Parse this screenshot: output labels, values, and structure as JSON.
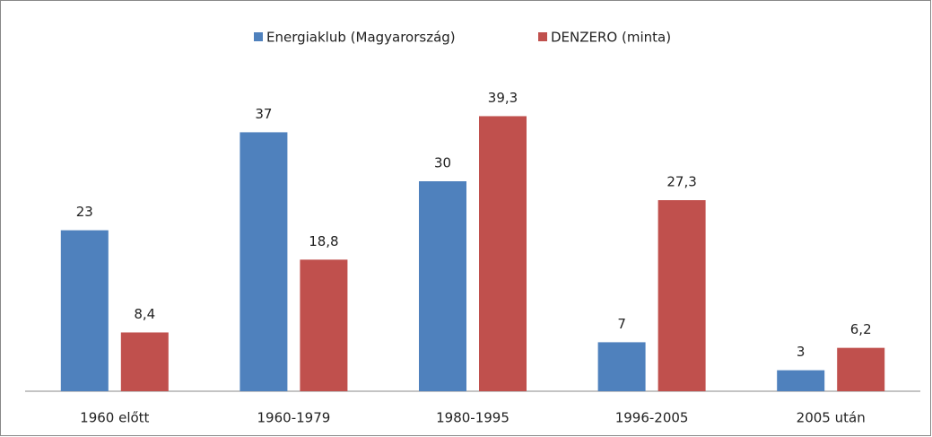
{
  "chart_data": {
    "type": "bar",
    "categories": [
      "1960 előtt",
      "1960-1979",
      "1980-1995",
      "1996-2005",
      "2005 után"
    ],
    "series": [
      {
        "name": "Energiaklub (Magyarország)",
        "color": "#4f81bd",
        "values": [
          23,
          37,
          30,
          7,
          3
        ]
      },
      {
        "name": "DENZERO (minta)",
        "color": "#c0504d",
        "values": [
          8.4,
          18.8,
          39.3,
          27.3,
          6.2
        ],
        "value_labels": [
          "8,4",
          "18,8",
          "39,3",
          "27,3",
          "6,2"
        ]
      }
    ],
    "ylim": [
      0,
      45
    ],
    "legend": "top"
  }
}
